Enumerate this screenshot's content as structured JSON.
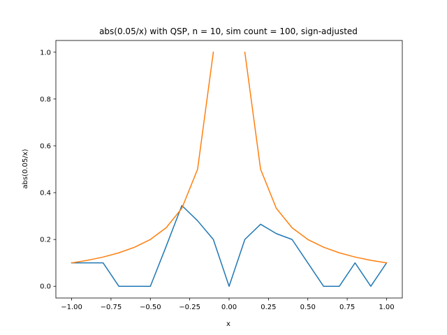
{
  "chart_data": {
    "type": "line",
    "title": "abs(0.05/x) with QSP, n = 10, sim count = 100, sign-adjusted",
    "xlabel": "x",
    "ylabel": "abs(0.05/x)",
    "xlim": [
      -1.1,
      1.1
    ],
    "ylim": [
      -0.05,
      1.05
    ],
    "xticks": [
      -1.0,
      -0.75,
      -0.5,
      -0.25,
      0.0,
      0.25,
      0.5,
      0.75,
      1.0
    ],
    "xtick_labels": [
      "−1.00",
      "−0.75",
      "−0.50",
      "−0.25",
      "0.00",
      "0.25",
      "0.50",
      "0.75",
      "1.00"
    ],
    "yticks": [
      0.0,
      0.2,
      0.4,
      0.6,
      0.8,
      1.0
    ],
    "ytick_labels": [
      "0.0",
      "0.2",
      "0.4",
      "0.6",
      "0.8",
      "1.0"
    ],
    "grid": false,
    "series": [
      {
        "color": "#1f77b4",
        "segments": [
          {
            "x": [
              -1.0,
              -0.9,
              -0.8,
              -0.7,
              -0.6,
              -0.5,
              -0.4,
              -0.3,
              -0.2,
              -0.1,
              0.0,
              0.1,
              0.2,
              0.3,
              0.4,
              0.5,
              0.6,
              0.7,
              0.8,
              0.9,
              1.0
            ],
            "y": [
              0.1,
              0.1,
              0.1,
              0.0,
              0.0,
              0.0,
              0.17,
              0.345,
              0.28,
              0.2,
              0.0,
              0.2,
              0.265,
              0.225,
              0.2,
              0.1,
              0.0,
              0.0,
              0.1,
              0.0,
              0.1
            ]
          }
        ]
      },
      {
        "color": "#ff7f0e",
        "segments": [
          {
            "x": [
              -1.0,
              -0.9,
              -0.8,
              -0.7,
              -0.6,
              -0.5,
              -0.4,
              -0.3,
              -0.2,
              -0.1
            ],
            "y": [
              0.1,
              0.111,
              0.125,
              0.143,
              0.167,
              0.2,
              0.25,
              0.333,
              0.5,
              1.0
            ]
          },
          {
            "x": [
              0.1,
              0.2,
              0.3,
              0.4,
              0.5,
              0.6,
              0.7,
              0.8,
              0.9,
              1.0
            ],
            "y": [
              1.0,
              0.5,
              0.333,
              0.25,
              0.2,
              0.167,
              0.143,
              0.125,
              0.111,
              0.1
            ]
          }
        ]
      }
    ]
  }
}
